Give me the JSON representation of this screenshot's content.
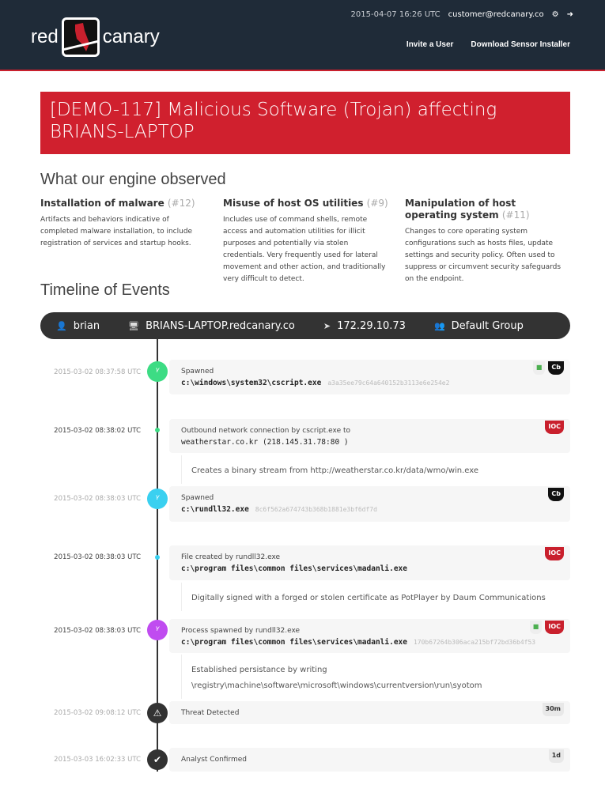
{
  "header": {
    "logo_left": "red",
    "logo_right": "canary",
    "datetime": "2015-04-07 16:26 UTC",
    "user": "customer@redcanary.co",
    "nav": [
      "Invite a User",
      "Download Sensor Installer"
    ],
    "icons": [
      "gear-icon",
      "logout-icon"
    ]
  },
  "banner": {
    "title": "[DEMO-117] Malicious Software (Trojan) affecting BRIANS-LAPTOP",
    "color": "#d0202e"
  },
  "observed": {
    "heading": "What our engine observed",
    "items": [
      {
        "title": "Installation of malware",
        "ref": "(#12)",
        "desc": "Artifacts and behaviors indicative of completed malware installation, to include registration of services and startup hooks."
      },
      {
        "title": "Misuse of host OS utilities",
        "ref": "(#9)",
        "desc": "Includes use of command shells, remote access and automation utilities for illicit purposes and potentially via stolen credentials. Very frequently used for lateral movement and other action, and traditionally very difficult to detect."
      },
      {
        "title": "Manipulation of host operating system",
        "ref": "(#11)",
        "desc": "Changes to core operating system configurations such as hosts files, update settings and security policy. Often used to suppress or circumvent security safeguards on the endpoint."
      }
    ]
  },
  "timeline": {
    "heading": "Timeline of Events",
    "context": {
      "user": "brian",
      "host": "BRIANS-LAPTOP.redcanary.co",
      "ip": "172.29.10.73",
      "group": "Default Group"
    },
    "events": [
      {
        "time": "2015-03-02 08:37:58 UTC",
        "title": "Spawned",
        "path": "c:\\windows\\system32\\cscript.exe",
        "hash": "a3a35ee79c64a640152b3113e6e254e2",
        "badge": "Cb",
        "color": "#3ddc84"
      },
      {
        "time": "2015-03-02 08:38:02 UTC",
        "title": "Outbound network connection by cscript.exe to",
        "path": "weatherstar.co.kr (218.145.31.78:80 )",
        "badge": "IOC",
        "note": "Creates a binary stream from http://weatherstar.co.kr/data/wmo/win.exe",
        "color": "#3ddc84"
      },
      {
        "time": "2015-03-02 08:38:03 UTC",
        "title": "Spawned",
        "path": "c:\\rundll32.exe",
        "hash": "8c6f562a674743b368b1881e3bf6df7d",
        "badge": "Cb",
        "color": "#3ad0f0"
      },
      {
        "time": "2015-03-02 08:38:03 UTC",
        "title": "File created by rundll32.exe",
        "path": "c:\\program files\\common files\\services\\madanli.exe",
        "badge": "IOC",
        "note": "Digitally signed with a forged or stolen certificate as PotPlayer by Daum Communications",
        "color": "#3ad0f0"
      },
      {
        "time": "2015-03-02 08:38:03 UTC",
        "title": "Process spawned by rundll32.exe",
        "path": "c:\\program files\\common files\\services\\madanli.exe",
        "hash": "170b67264b306aca215bf72bd36b4f53",
        "badge": "IOC",
        "note": "Established persistance by writing",
        "note2": "\\registry\\machine\\software\\microsoft\\windows\\currentversion\\run\\syotom",
        "color": "#c04cf0"
      },
      {
        "time": "2015-03-02 09:08:12 UTC",
        "title": "Threat Detected",
        "badge": "30m"
      },
      {
        "time": "2015-03-03 16:02:33 UTC",
        "title": "Analyst Confirmed",
        "badge": "1d"
      }
    ]
  }
}
